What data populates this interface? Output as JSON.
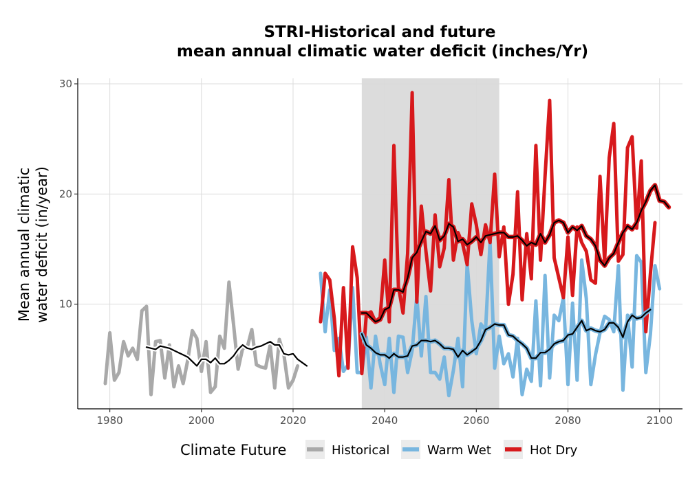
{
  "chart_data": {
    "type": "line",
    "title_line1": "STRI-Historical and future",
    "title_line2": "mean annual climatic water deficit (inches/Yr)",
    "ylabel_line1": "Mean annual climatic",
    "ylabel_line2": "water deficit (in/year)",
    "xlabel": "",
    "xlim": [
      1973,
      2105
    ],
    "ylim": [
      0.5,
      30.5
    ],
    "xticks": [
      1980,
      2000,
      2020,
      2040,
      2060,
      2080,
      2100
    ],
    "yticks": [
      10,
      20,
      30
    ],
    "grid": true,
    "shaded_period": [
      2035,
      2065
    ],
    "legend": {
      "title": "Climate Future",
      "position": "bottom",
      "entries": [
        "Historical",
        "Warm Wet",
        "Hot Dry"
      ]
    },
    "series": [
      {
        "name": "Historical",
        "color": "#a9a9a9",
        "x_start": 1979,
        "values": [
          2.8,
          7.4,
          3.1,
          3.8,
          6.6,
          5.3,
          6.0,
          5.0,
          9.4,
          9.8,
          1.8,
          6.6,
          6.7,
          3.3,
          6.3,
          2.5,
          4.4,
          2.8,
          4.9,
          7.6,
          6.9,
          3.9,
          6.6,
          2.0,
          2.5,
          7.1,
          6.0,
          12.0,
          8.2,
          4.1,
          6.0,
          6.1,
          7.7,
          4.5,
          4.3,
          4.2,
          6.3,
          2.4,
          6.8,
          5.4,
          2.4,
          3.1,
          4.4
        ]
      },
      {
        "name": "Historical trend",
        "color": "#000000",
        "outline": "#ffffff",
        "x_start": 1988,
        "values": [
          6.1,
          6.0,
          5.9,
          6.2,
          6.1,
          6.0,
          5.8,
          5.6,
          5.4,
          5.2,
          4.8,
          4.4,
          5.0,
          5.0,
          4.7,
          5.1,
          4.6,
          4.6,
          4.9,
          5.3,
          5.9,
          6.3,
          6.0,
          5.9,
          6.1,
          6.2,
          6.4,
          6.6,
          6.3,
          6.3,
          5.5,
          5.4,
          5.5,
          5.0,
          4.7,
          4.4
        ]
      },
      {
        "name": "Warm Wet",
        "color": "#78b6df",
        "x_start": 2026,
        "values": [
          12.8,
          7.5,
          11.3,
          5.8,
          6.9,
          3.9,
          4.5,
          11.5,
          3.8,
          3.8,
          7.0,
          2.4,
          7.1,
          4.6,
          2.7,
          6.9,
          2.0,
          7.1,
          7.0,
          3.8,
          5.8,
          10.7,
          5.3,
          10.7,
          3.8,
          3.8,
          3.2,
          5.2,
          1.7,
          4.0,
          6.9,
          2.5,
          13.7,
          8.5,
          5.5,
          8.2,
          7.6,
          15.7,
          4.2,
          7.1,
          4.6,
          5.5,
          3.4,
          6.9,
          1.8,
          4.1,
          3.0,
          10.3,
          2.6,
          12.6,
          3.3,
          9.0,
          8.5,
          10.6,
          2.7,
          10.1,
          3.1,
          14.0,
          10.5,
          2.7,
          5.4,
          7.4,
          8.9,
          8.6,
          7.5,
          13.5,
          2.2,
          9.0,
          4.3,
          14.4,
          13.8,
          3.8,
          7.3,
          13.5,
          11.4
        ]
      },
      {
        "name": "Hot Dry",
        "color": "#d7191c",
        "x_start": 2026,
        "values": [
          8.4,
          12.8,
          12.2,
          8.7,
          3.5,
          11.5,
          4.2,
          15.2,
          12.4,
          3.7,
          9.1,
          9.3,
          8.4,
          8.8,
          14.0,
          8.4,
          24.4,
          11.6,
          9.2,
          14.6,
          29.2,
          10.2,
          18.9,
          14.8,
          11.2,
          18.1,
          13.4,
          15.1,
          21.3,
          14.0,
          16.5,
          15.5,
          13.6,
          19.1,
          17.2,
          14.5,
          17.2,
          15.6,
          21.8,
          14.3,
          17.0,
          10.0,
          12.7,
          20.2,
          10.4,
          16.4,
          12.3,
          24.4,
          14.0,
          21.6,
          28.5,
          14.2,
          12.4,
          10.6,
          16.1,
          10.8,
          17.0,
          15.6,
          14.8,
          12.2,
          11.9,
          21.6,
          13.9,
          23.3,
          26.4,
          13.9,
          14.5,
          24.2,
          25.2,
          16.9,
          23.0,
          7.5,
          12.8,
          17.4
        ]
      },
      {
        "name": "Warm Wet trend",
        "color": "#000000",
        "outline": "#78b6df",
        "x_start": 2035,
        "values": [
          7.3,
          6.3,
          6.0,
          5.6,
          5.4,
          5.4,
          5.1,
          5.5,
          5.2,
          5.2,
          5.3,
          6.2,
          6.3,
          6.7,
          6.7,
          6.6,
          6.7,
          6.4,
          6.0,
          6.0,
          5.9,
          5.2,
          5.8,
          5.4,
          5.7,
          6.0,
          6.7,
          7.7,
          7.9,
          8.2,
          8.1,
          8.1,
          7.2,
          7.1,
          6.7,
          6.4,
          6.0,
          5.1,
          5.1,
          5.6,
          5.6,
          5.9,
          6.4,
          6.6,
          6.7,
          7.2,
          7.3,
          7.9,
          8.5,
          7.6,
          7.8,
          7.6,
          7.5,
          7.7,
          8.3,
          8.3,
          7.9,
          7.0,
          8.4,
          9.0,
          8.7,
          8.8,
          9.2,
          9.5
        ]
      },
      {
        "name": "Hot Dry trend",
        "color": "#000000",
        "outline": "#d7191c",
        "x_start": 2035,
        "values": [
          9.2,
          9.2,
          8.8,
          8.4,
          8.6,
          9.5,
          9.7,
          11.3,
          11.3,
          11.1,
          12.4,
          14.2,
          14.7,
          15.7,
          16.6,
          16.4,
          17.1,
          15.8,
          16.2,
          17.3,
          17.0,
          15.7,
          15.9,
          15.4,
          15.7,
          16.1,
          15.6,
          16.2,
          16.3,
          16.4,
          16.5,
          16.5,
          16.1,
          16.1,
          16.2,
          15.8,
          15.3,
          15.6,
          15.4,
          16.4,
          15.6,
          16.3,
          17.4,
          17.6,
          17.4,
          16.5,
          17.0,
          16.7,
          17.1,
          16.2,
          15.9,
          15.3,
          14.0,
          13.5,
          14.2,
          14.6,
          15.6,
          16.5,
          17.1,
          16.8,
          17.4,
          18.5,
          19.3,
          20.3,
          20.8,
          19.4,
          19.3,
          18.8
        ]
      }
    ]
  }
}
